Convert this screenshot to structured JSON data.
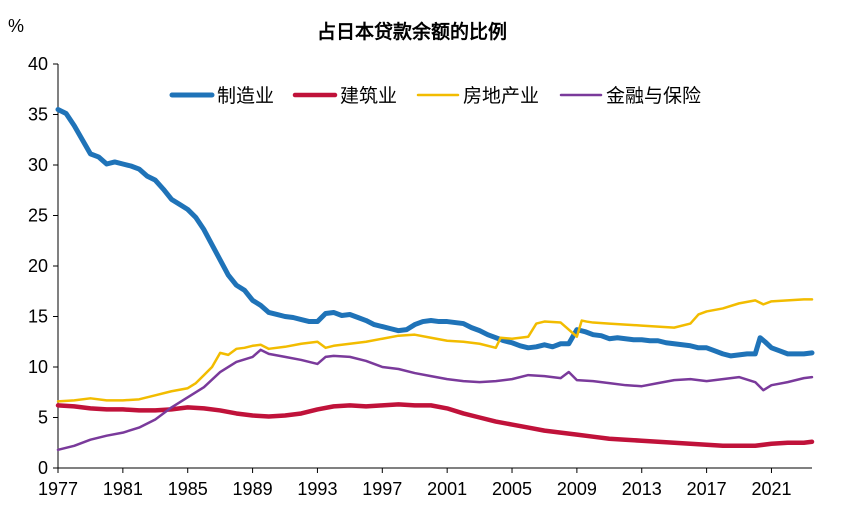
{
  "chart_data": {
    "type": "line",
    "title": "占日本贷款余额的比例",
    "ylabel": "%",
    "xlabel": "",
    "xlim": [
      1977,
      2023.5
    ],
    "ylim": [
      0,
      40
    ],
    "x_ticks": [
      "1977",
      "1981",
      "1985",
      "1989",
      "1993",
      "1997",
      "2001",
      "2005",
      "2009",
      "2013",
      "2017",
      "2021"
    ],
    "y_ticks": [
      "0",
      "5",
      "10",
      "15",
      "20",
      "25",
      "30",
      "35",
      "40"
    ],
    "legend_position": "top",
    "series": [
      {
        "name": "制造业",
        "color": "#1f73b8",
        "x": [
          1977,
          1977.5,
          1978,
          1978.5,
          1979,
          1979.5,
          1980,
          1980.5,
          1981,
          1981.5,
          1982,
          1982.5,
          1983,
          1983.5,
          1984,
          1984.5,
          1985,
          1985.5,
          1986,
          1986.5,
          1987,
          1987.5,
          1988,
          1988.5,
          1989,
          1989.5,
          1990,
          1990.5,
          1991,
          1991.5,
          1992,
          1992.5,
          1993,
          1993.5,
          1994,
          1994.5,
          1995,
          1995.5,
          1996,
          1996.5,
          1997,
          1997.5,
          1998,
          1998.5,
          1999,
          1999.5,
          2000,
          2000.5,
          2001,
          2001.5,
          2002,
          2002.5,
          2003,
          2003.5,
          2004,
          2004.5,
          2005,
          2005.5,
          2006,
          2006.5,
          2007,
          2007.5,
          2008,
          2008.5,
          2009,
          2009.5,
          2010,
          2010.5,
          2011,
          2011.5,
          2012,
          2012.5,
          2013,
          2013.5,
          2014,
          2014.5,
          2015,
          2015.5,
          2016,
          2016.5,
          2017,
          2017.5,
          2018,
          2018.5,
          2019,
          2019.5,
          2020,
          2020.3,
          2020.6,
          2021,
          2021.5,
          2022,
          2022.5,
          2023,
          2023.5
        ],
        "values": [
          35.5,
          35.1,
          33.9,
          32.5,
          31.1,
          30.8,
          30.1,
          30.3,
          30.1,
          29.9,
          29.6,
          28.9,
          28.5,
          27.6,
          26.6,
          26.1,
          25.6,
          24.8,
          23.6,
          22.1,
          20.6,
          19.1,
          18.1,
          17.6,
          16.6,
          16.1,
          15.4,
          15.2,
          15.0,
          14.9,
          14.7,
          14.5,
          14.5,
          15.3,
          15.4,
          15.1,
          15.2,
          14.9,
          14.6,
          14.2,
          14.0,
          13.8,
          13.6,
          13.7,
          14.2,
          14.5,
          14.6,
          14.5,
          14.5,
          14.4,
          14.3,
          13.9,
          13.6,
          13.2,
          12.9,
          12.6,
          12.4,
          12.1,
          11.9,
          12.0,
          12.2,
          12.0,
          12.3,
          12.3,
          13.7,
          13.5,
          13.2,
          13.1,
          12.8,
          12.9,
          12.8,
          12.7,
          12.7,
          12.6,
          12.6,
          12.4,
          12.3,
          12.2,
          12.1,
          11.9,
          11.9,
          11.6,
          11.3,
          11.1,
          11.2,
          11.3,
          11.3,
          12.9,
          12.5,
          11.9,
          11.6,
          11.3,
          11.3,
          11.3,
          11.4
        ]
      },
      {
        "name": "建筑业",
        "color": "#c0123a",
        "x": [
          1977,
          1978,
          1979,
          1980,
          1981,
          1982,
          1983,
          1984,
          1985,
          1986,
          1987,
          1988,
          1989,
          1990,
          1991,
          1992,
          1993,
          1994,
          1995,
          1996,
          1997,
          1998,
          1999,
          2000,
          2001,
          2002,
          2003,
          2004,
          2005,
          2006,
          2007,
          2008,
          2009,
          2010,
          2011,
          2012,
          2013,
          2014,
          2015,
          2016,
          2017,
          2018,
          2019,
          2020,
          2021,
          2022,
          2023,
          2023.5
        ],
        "values": [
          6.2,
          6.1,
          5.9,
          5.8,
          5.8,
          5.7,
          5.7,
          5.8,
          6.0,
          5.9,
          5.7,
          5.4,
          5.2,
          5.1,
          5.2,
          5.4,
          5.8,
          6.1,
          6.2,
          6.1,
          6.2,
          6.3,
          6.2,
          6.2,
          5.9,
          5.4,
          5.0,
          4.6,
          4.3,
          4.0,
          3.7,
          3.5,
          3.3,
          3.1,
          2.9,
          2.8,
          2.7,
          2.6,
          2.5,
          2.4,
          2.3,
          2.2,
          2.2,
          2.2,
          2.4,
          2.5,
          2.5,
          2.6
        ]
      },
      {
        "name": "房地产业",
        "color": "#f2bc00",
        "x": [
          1977,
          1978,
          1979,
          1980,
          1981,
          1982,
          1983,
          1984,
          1985,
          1985.5,
          1986,
          1986.5,
          1987,
          1987.5,
          1988,
          1988.5,
          1989,
          1989.5,
          1990,
          1991,
          1992,
          1993,
          1993.5,
          1994,
          1995,
          1996,
          1997,
          1998,
          1999,
          2000,
          2001,
          2002,
          2003,
          2004,
          2004.3,
          2005,
          2006,
          2006.5,
          2007,
          2008,
          2009,
          2009.3,
          2009.6,
          2010,
          2011,
          2012,
          2013,
          2014,
          2015,
          2016,
          2016.5,
          2017,
          2018,
          2019,
          2020,
          2020.5,
          2021,
          2022,
          2023,
          2023.5
        ],
        "values": [
          6.6,
          6.7,
          6.9,
          6.7,
          6.7,
          6.8,
          7.2,
          7.6,
          7.9,
          8.4,
          9.2,
          10.0,
          11.4,
          11.2,
          11.8,
          11.9,
          12.1,
          12.2,
          11.8,
          12.0,
          12.3,
          12.5,
          11.9,
          12.1,
          12.3,
          12.5,
          12.8,
          13.1,
          13.2,
          12.9,
          12.6,
          12.5,
          12.3,
          11.9,
          12.9,
          12.8,
          13.0,
          14.3,
          14.5,
          14.4,
          13.0,
          14.6,
          14.5,
          14.4,
          14.3,
          14.2,
          14.1,
          14.0,
          13.9,
          14.3,
          15.2,
          15.5,
          15.8,
          16.3,
          16.6,
          16.2,
          16.5,
          16.6,
          16.7,
          16.7
        ]
      },
      {
        "name": "金融与保险",
        "color": "#7a3a9b",
        "x": [
          1977,
          1978,
          1979,
          1980,
          1981,
          1982,
          1983,
          1984,
          1985,
          1986,
          1987,
          1988,
          1989,
          1989.5,
          1990,
          1991,
          1992,
          1993,
          1993.5,
          1994,
          1995,
          1996,
          1997,
          1998,
          1999,
          2000,
          2001,
          2002,
          2003,
          2004,
          2005,
          2006,
          2007,
          2008,
          2008.5,
          2009,
          2010,
          2011,
          2012,
          2013,
          2014,
          2015,
          2016,
          2017,
          2018,
          2019,
          2020,
          2020.5,
          2021,
          2022,
          2023,
          2023.5
        ],
        "values": [
          1.8,
          2.2,
          2.8,
          3.2,
          3.5,
          4.0,
          4.8,
          6.0,
          7.0,
          8.0,
          9.5,
          10.5,
          11.0,
          11.7,
          11.3,
          11.0,
          10.7,
          10.3,
          11.0,
          11.1,
          11.0,
          10.6,
          10.0,
          9.8,
          9.4,
          9.1,
          8.8,
          8.6,
          8.5,
          8.6,
          8.8,
          9.2,
          9.1,
          8.9,
          9.5,
          8.7,
          8.6,
          8.4,
          8.2,
          8.1,
          8.4,
          8.7,
          8.8,
          8.6,
          8.8,
          9.0,
          8.5,
          7.7,
          8.2,
          8.5,
          8.9,
          9.0
        ]
      }
    ]
  }
}
